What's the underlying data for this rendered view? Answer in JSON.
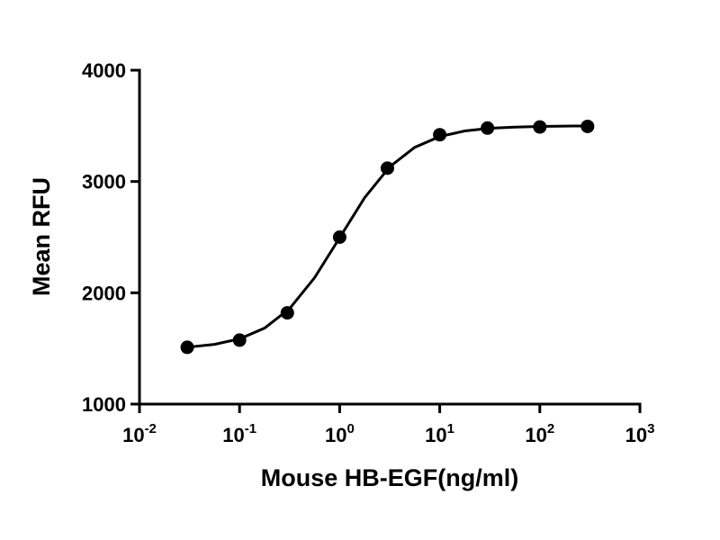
{
  "chart_data": {
    "type": "scatter",
    "xlabel": "Mouse HB-EGF(ng/ml)",
    "ylabel": "Mean RFU",
    "xscale": "log",
    "xlim": [
      0.01,
      1000
    ],
    "xticks": [
      {
        "value": 0.01,
        "label": "10",
        "exponent": "-2"
      },
      {
        "value": 0.1,
        "label": "10",
        "exponent": "-1"
      },
      {
        "value": 1,
        "label": "10",
        "exponent": "0"
      },
      {
        "value": 10,
        "label": "10",
        "exponent": "1"
      },
      {
        "value": 100,
        "label": "10",
        "exponent": "2"
      },
      {
        "value": 1000,
        "label": "10",
        "exponent": "3"
      }
    ],
    "ylim": [
      1000,
      4000
    ],
    "yticks": [
      1000,
      2000,
      3000,
      4000
    ],
    "series": [
      {
        "color": "#000000",
        "marker": "circle",
        "x": [
          0.03,
          0.1,
          0.3,
          1,
          3,
          10,
          30,
          100,
          300
        ],
        "values": [
          1510,
          1575,
          1820,
          2500,
          3120,
          3420,
          3480,
          3490,
          3495
        ]
      },
      {
        "color": "#000000",
        "line": true,
        "x": [
          0.03,
          0.0562,
          0.1,
          0.178,
          0.316,
          0.562,
          1,
          1.778,
          3.162,
          5.623,
          10,
          17.78,
          31.62,
          56.23,
          100,
          177.8,
          300
        ],
        "values": [
          1511,
          1537,
          1586,
          1683,
          1858,
          2136,
          2495,
          2855,
          3132,
          3307,
          3404,
          3454,
          3478,
          3489,
          3495,
          3498,
          3499
        ]
      }
    ]
  }
}
